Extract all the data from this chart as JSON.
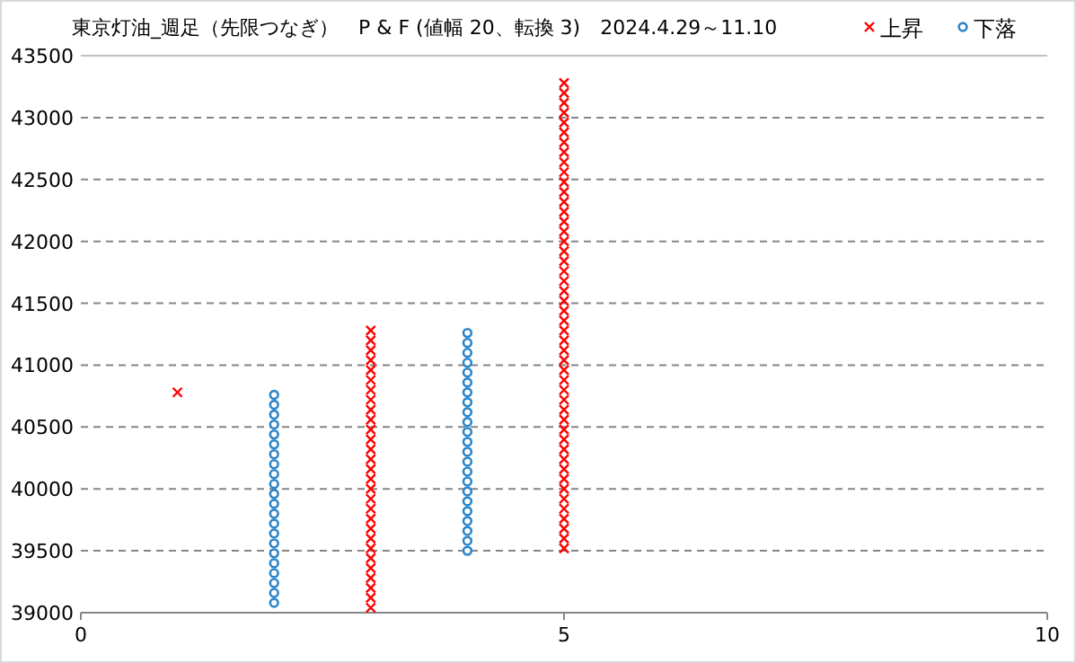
{
  "chart_data": {
    "type": "scatter",
    "title": "東京灯油_週足（先限つなぎ）　P & F (値幅 20、転換 3)　2024.4.29～11.10",
    "xlim": [
      0,
      10
    ],
    "xticks": [
      0,
      5,
      10
    ],
    "ylim": [
      39000,
      43500
    ],
    "yticks": [
      39000,
      39500,
      40000,
      40500,
      41000,
      41500,
      42000,
      42500,
      43000,
      43500
    ],
    "grid": "y",
    "legend": "top right",
    "series": [
      {
        "name": "上昇",
        "color": "#ff0000",
        "marker": "cross",
        "x": [
          1,
          3,
          3,
          3,
          3,
          3,
          3,
          3,
          3,
          3,
          3,
          3,
          3,
          3,
          3,
          3,
          3,
          3,
          3,
          3,
          3,
          3,
          3,
          3,
          3,
          3,
          3,
          3,
          3,
          3,
          5,
          5,
          5,
          5,
          5,
          5,
          5,
          5,
          5,
          5,
          5,
          5,
          5,
          5,
          5,
          5,
          5,
          5,
          5,
          5,
          5,
          5,
          5,
          5,
          5,
          5,
          5,
          5,
          5,
          5,
          5,
          5,
          5,
          5,
          5,
          5,
          5,
          5,
          5,
          5,
          5,
          5,
          5,
          5,
          5,
          5,
          5,
          5
        ],
        "values": [
          40780,
          39040,
          39120,
          39200,
          39280,
          39360,
          39440,
          39520,
          39600,
          39680,
          39760,
          39840,
          39920,
          40000,
          40080,
          40160,
          40240,
          40320,
          40400,
          40480,
          40560,
          40640,
          40720,
          40800,
          40880,
          40960,
          41040,
          41120,
          41200,
          41280,
          39520,
          39600,
          39680,
          39760,
          39840,
          39920,
          40000,
          40080,
          40160,
          40240,
          40320,
          40400,
          40480,
          40560,
          40640,
          40720,
          40800,
          40880,
          40960,
          41040,
          41120,
          41200,
          41280,
          41360,
          41440,
          41520,
          41600,
          41680,
          41760,
          41840,
          41920,
          42000,
          42080,
          42160,
          42240,
          42320,
          42400,
          42480,
          42560,
          42640,
          42720,
          42800,
          42880,
          42960,
          43040,
          43120,
          43200,
          43280
        ]
      },
      {
        "name": "下落",
        "color": "#2e86c8",
        "marker": "circle",
        "x": [
          2,
          2,
          2,
          2,
          2,
          2,
          2,
          2,
          2,
          2,
          2,
          2,
          2,
          2,
          2,
          2,
          2,
          2,
          2,
          2,
          2,
          2,
          4,
          4,
          4,
          4,
          4,
          4,
          4,
          4,
          4,
          4,
          4,
          4,
          4,
          4,
          4,
          4,
          4,
          4,
          4,
          4,
          4,
          4,
          4
        ],
        "values": [
          40760,
          40680,
          40600,
          40520,
          40440,
          40360,
          40280,
          40200,
          40120,
          40040,
          39960,
          39880,
          39800,
          39720,
          39640,
          39560,
          39480,
          39400,
          39320,
          39240,
          39160,
          39080,
          41260,
          41180,
          41100,
          41020,
          40940,
          40860,
          40780,
          40700,
          40620,
          40540,
          40460,
          40380,
          40300,
          40220,
          40140,
          40060,
          39980,
          39900,
          39820,
          39740,
          39660,
          39580,
          39500
        ]
      }
    ]
  }
}
